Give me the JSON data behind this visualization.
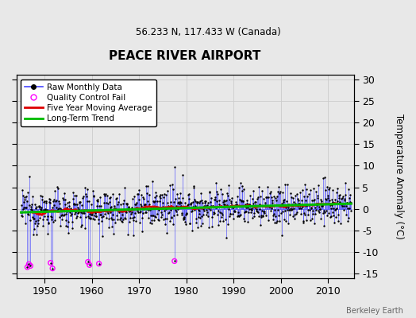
{
  "title": "PEACE RIVER AIRPORT",
  "subtitle": "56.233 N, 117.433 W (Canada)",
  "ylabel": "Temperature Anomaly (°C)",
  "credit": "Berkeley Earth",
  "ylim": [
    -16,
    31
  ],
  "yticks": [
    -15,
    -10,
    -5,
    0,
    5,
    10,
    15,
    20,
    25,
    30
  ],
  "year_start": 1945,
  "year_end": 2016,
  "bg_color": "#e8e8e8",
  "line_color": "#4444ff",
  "trend_color": "#00bb00",
  "moving_avg_color": "#dd0000",
  "qc_fail_color": "#ff00ff",
  "seed": 12345,
  "n_months": 840,
  "figsize": [
    5.24,
    4.0
  ],
  "dpi": 100
}
